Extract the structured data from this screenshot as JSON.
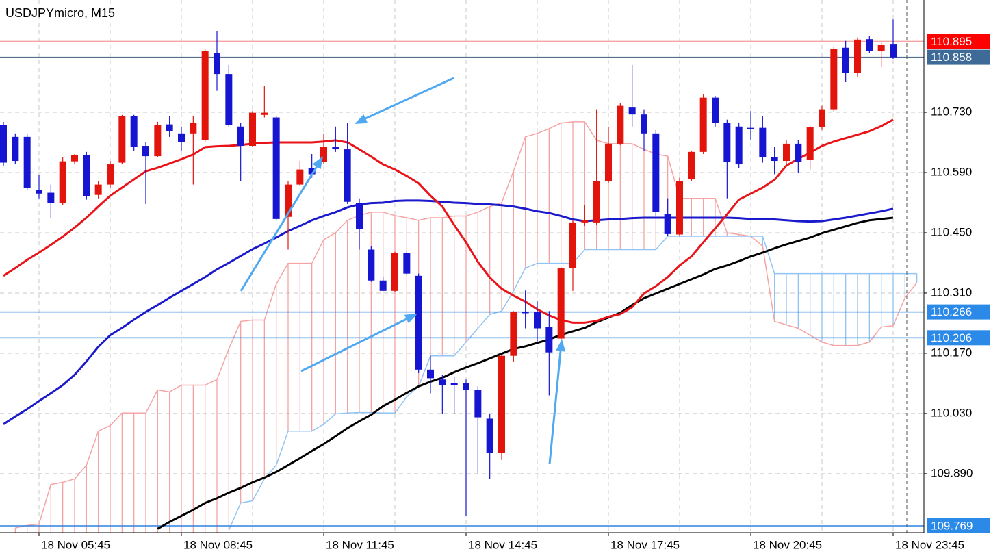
{
  "chart_data": {
    "type": "candlestick",
    "title": "USDJPYmicro, M15",
    "categories": [
      null,
      null,
      null,
      "18 Nov 05:45",
      null,
      null,
      null,
      null,
      null,
      null,
      null,
      null,
      null,
      null,
      null,
      "18 Nov 08:45",
      null,
      null,
      null,
      null,
      null,
      null,
      null,
      null,
      null,
      null,
      null,
      "18 Nov 11:45",
      null,
      null,
      null,
      null,
      null,
      null,
      null,
      null,
      null,
      null,
      null,
      "18 Nov 14:45",
      null,
      null,
      null,
      null,
      null,
      null,
      null,
      null,
      null,
      null,
      null,
      "18 Nov 17:45",
      null,
      null,
      null,
      null,
      null,
      null,
      null,
      null,
      null,
      null,
      null,
      "18 Nov 20:45",
      null,
      null,
      null,
      null,
      null,
      null,
      null,
      null,
      null,
      null,
      null,
      "18 Nov 23:45",
      null,
      null
    ],
    "open": [
      110.7,
      110.673,
      110.673,
      110.549,
      110.543,
      110.519,
      110.616,
      110.63,
      110.538,
      110.562,
      110.613,
      110.721,
      110.652,
      110.628,
      110.702,
      110.681,
      110.681,
      110.665,
      110.867,
      110.819,
      110.697,
      110.652,
      110.724,
      110.718,
      110.487,
      110.562,
      110.601,
      110.614,
      110.649,
      110.644,
      110.519,
      110.411,
      110.339,
      110.315,
      110.403,
      110.35,
      110.132,
      110.109,
      110.101,
      110.101,
      110.085,
      110.018,
      109.938,
      110.164,
      110.266,
      110.266,
      110.231,
      110.204,
      110.368,
      110.474,
      110.474,
      110.57,
      110.657,
      110.741,
      110.725,
      110.681,
      110.493,
      110.446,
      110.574,
      110.638,
      110.764,
      110.705,
      110.697,
      110.694,
      110.694,
      110.625,
      110.617,
      110.657,
      110.62,
      110.695,
      110.737,
      110.88,
      110.822,
      110.9,
      110.872,
      110.889,
      null,
      null
    ],
    "high": [
      110.708,
      110.681,
      110.681,
      110.585,
      110.562,
      110.625,
      110.633,
      110.638,
      110.57,
      110.617,
      110.724,
      110.724,
      110.66,
      110.708,
      110.721,
      110.697,
      110.721,
      110.876,
      110.919,
      110.84,
      110.705,
      110.733,
      110.792,
      110.721,
      110.57,
      110.617,
      110.633,
      110.681,
      110.697,
      110.705,
      110.53,
      110.419,
      110.347,
      110.406,
      110.406,
      110.355,
      110.164,
      110.119,
      110.116,
      110.109,
      110.093,
      110.029,
      110.167,
      110.268,
      110.316,
      110.291,
      110.268,
      110.371,
      110.479,
      110.514,
      110.737,
      110.697,
      110.752,
      110.84,
      110.737,
      110.689,
      110.53,
      110.578,
      110.641,
      110.772,
      110.768,
      110.713,
      110.705,
      110.733,
      110.721,
      110.649,
      110.665,
      110.665,
      110.698,
      110.745,
      110.883,
      110.896,
      110.904,
      110.908,
      110.892,
      110.946,
      null,
      null
    ],
    "low": [
      110.605,
      110.609,
      110.549,
      110.53,
      110.485,
      110.514,
      110.609,
      110.527,
      110.53,
      110.554,
      110.609,
      110.641,
      110.517,
      110.625,
      110.673,
      110.641,
      110.562,
      110.66,
      110.78,
      110.697,
      110.57,
      110.649,
      110.718,
      110.479,
      110.411,
      110.558,
      110.578,
      110.609,
      110.638,
      110.517,
      110.411,
      110.336,
      110.315,
      110.312,
      110.352,
      110.124,
      110.077,
      110.029,
      110.029,
      109.791,
      109.891,
      109.878,
      109.922,
      110.151,
      110.228,
      110.196,
      110.072,
      110.201,
      110.315,
      110.466,
      110.469,
      110.565,
      110.654,
      110.697,
      110.641,
      110.49,
      110.442,
      110.442,
      110.57,
      110.633,
      110.697,
      110.53,
      110.601,
      110.665,
      110.613,
      110.586,
      110.609,
      110.59,
      110.597,
      110.689,
      110.732,
      110.8,
      110.813,
      110.867,
      110.835,
      110.854,
      null,
      null
    ],
    "close": [
      110.613,
      110.617,
      110.554,
      110.541,
      110.519,
      110.616,
      110.63,
      110.535,
      110.562,
      110.609,
      110.721,
      110.649,
      110.628,
      110.7,
      110.686,
      110.66,
      110.705,
      110.872,
      110.819,
      110.7,
      110.652,
      110.729,
      110.729,
      110.482,
      110.562,
      110.597,
      110.586,
      110.65,
      110.644,
      110.522,
      110.458,
      110.339,
      110.315,
      110.403,
      110.355,
      110.132,
      110.112,
      110.096,
      110.096,
      110.085,
      110.021,
      109.938,
      110.164,
      110.266,
      110.263,
      110.228,
      110.172,
      110.368,
      110.474,
      110.479,
      110.57,
      110.657,
      110.745,
      110.725,
      110.681,
      110.498,
      110.447,
      110.57,
      110.638,
      110.764,
      110.705,
      110.614,
      110.609,
      110.692,
      110.625,
      110.617,
      110.657,
      110.614,
      110.695,
      110.737,
      110.877,
      110.821,
      110.899,
      110.872,
      110.886,
      110.858,
      null,
      null
    ],
    "up_color": "#e3140c",
    "down_color": "#1616d2",
    "ylim": [
      109.753,
      110.991
    ],
    "yticks": [
      {
        "value": 109.89,
        "label": "109.890"
      },
      {
        "value": 110.03,
        "label": "110.030"
      },
      {
        "value": 110.17,
        "label": "110.170"
      },
      {
        "value": 110.31,
        "label": "110.310"
      },
      {
        "value": 110.45,
        "label": "110.450"
      },
      {
        "value": 110.59,
        "label": "110.590"
      },
      {
        "value": 110.73,
        "label": "110.730"
      }
    ],
    "grid": true,
    "cloud": {
      "span_a": {
        "color": "#f5a3a3",
        "values": [
          null,
          109.764,
          109.77,
          109.773,
          109.865,
          109.87,
          109.878,
          109.91,
          109.989,
          110.002,
          110.031,
          110.031,
          110.031,
          110.085,
          110.08,
          110.096,
          110.096,
          110.096,
          110.109,
          110.18,
          110.244,
          110.247,
          110.247,
          110.331,
          110.379,
          110.379,
          110.379,
          110.434,
          110.45,
          110.479,
          110.49,
          110.498,
          110.498,
          110.49,
          110.485,
          110.479,
          110.485,
          110.485,
          110.489,
          110.489,
          110.498,
          110.511,
          110.52,
          110.593,
          110.673,
          110.681,
          110.692,
          110.705,
          110.708,
          110.708,
          110.665,
          110.657,
          110.657,
          110.657,
          110.644,
          110.633,
          110.628,
          110.53,
          110.53,
          110.53,
          110.53,
          110.45,
          110.446,
          110.442,
          110.419,
          110.244,
          110.236,
          110.228,
          110.212,
          110.196,
          110.188,
          110.188,
          110.188,
          110.196,
          110.231,
          110.234,
          110.299,
          110.334
        ]
      },
      "span_b": {
        "color": "#8fc4f4",
        "values": [
          null,
          null,
          null,
          null,
          null,
          null,
          null,
          null,
          null,
          null,
          null,
          null,
          null,
          null,
          null,
          null,
          null,
          null,
          null,
          109.759,
          109.822,
          109.827,
          109.878,
          109.91,
          109.989,
          109.989,
          109.989,
          110.005,
          110.029,
          110.031,
          110.032,
          110.032,
          110.031,
          110.031,
          110.069,
          110.093,
          110.164,
          110.164,
          110.164,
          110.196,
          110.228,
          110.26,
          110.268,
          110.315,
          110.368,
          110.379,
          110.379,
          110.379,
          110.379,
          110.411,
          110.411,
          110.411,
          110.411,
          110.411,
          110.411,
          110.411,
          110.442,
          110.442,
          110.442,
          110.442,
          110.442,
          110.442,
          110.442,
          110.442,
          110.442,
          110.355,
          110.355,
          110.355,
          110.355,
          110.355,
          110.355,
          110.355,
          110.355,
          110.355,
          110.355,
          110.355,
          110.355,
          110.355
        ]
      }
    },
    "indicators": [
      {
        "color": "#1a1acc",
        "values": [
          110.005,
          110.023,
          110.04,
          110.059,
          110.077,
          110.096,
          110.12,
          110.151,
          110.185,
          110.212,
          110.229,
          110.248,
          110.266,
          110.282,
          110.299,
          110.315,
          110.331,
          110.347,
          110.365,
          110.38,
          110.396,
          110.412,
          110.425,
          110.439,
          110.454,
          110.466,
          110.479,
          110.489,
          110.498,
          110.509,
          110.516,
          110.519,
          110.52,
          110.524,
          110.525,
          110.525,
          110.524,
          110.522,
          110.52,
          110.519,
          110.517,
          110.516,
          110.514,
          110.511,
          110.506,
          110.5,
          110.496,
          110.489,
          110.481,
          110.477,
          110.479,
          110.481,
          110.482,
          110.484,
          110.485,
          110.485,
          110.485,
          110.485,
          110.485,
          110.485,
          110.485,
          110.485,
          110.484,
          110.482,
          110.481,
          110.481,
          110.479,
          110.477,
          110.476,
          110.477,
          110.481,
          110.485,
          110.49,
          110.495,
          110.5,
          110.506,
          null,
          null
        ]
      },
      {
        "color": "#000000",
        "values": [
          null,
          null,
          null,
          null,
          null,
          null,
          null,
          null,
          null,
          null,
          null,
          null,
          null,
          109.762,
          109.778,
          109.792,
          109.806,
          109.822,
          109.833,
          109.846,
          109.857,
          109.87,
          109.881,
          109.894,
          109.91,
          109.926,
          109.943,
          109.959,
          109.977,
          109.996,
          110.012,
          110.027,
          110.047,
          110.062,
          110.078,
          110.093,
          110.104,
          110.113,
          110.126,
          110.137,
          110.147,
          110.158,
          110.169,
          110.18,
          110.186,
          110.194,
          110.202,
          110.213,
          110.221,
          110.229,
          110.242,
          110.253,
          110.264,
          110.282,
          110.298,
          110.309,
          110.32,
          110.331,
          110.342,
          110.353,
          110.366,
          110.374,
          110.384,
          110.395,
          110.404,
          110.414,
          110.423,
          110.431,
          110.439,
          110.449,
          110.457,
          110.465,
          110.473,
          110.479,
          110.482,
          110.485,
          null,
          null
        ]
      },
      {
        "color": "#e8141a",
        "values": [
          110.35,
          110.368,
          110.387,
          110.404,
          110.422,
          110.441,
          110.462,
          110.485,
          110.511,
          110.536,
          110.555,
          110.574,
          110.593,
          110.601,
          110.611,
          110.621,
          110.632,
          110.649,
          110.651,
          110.652,
          110.654,
          110.657,
          110.659,
          110.66,
          110.66,
          110.66,
          110.66,
          110.662,
          110.665,
          110.66,
          110.644,
          110.627,
          110.609,
          110.597,
          110.582,
          110.565,
          110.536,
          110.511,
          110.468,
          110.428,
          110.382,
          110.346,
          110.32,
          110.304,
          110.29,
          110.272,
          110.258,
          110.247,
          110.241,
          110.241,
          110.245,
          110.255,
          110.261,
          110.277,
          110.309,
          110.326,
          110.347,
          110.374,
          110.395,
          110.428,
          110.46,
          110.493,
          110.527,
          110.541,
          110.555,
          110.573,
          110.606,
          110.622,
          110.636,
          110.652,
          110.662,
          110.67,
          110.678,
          110.686,
          110.698,
          110.713,
          null,
          null
        ]
      }
    ],
    "levels": [
      {
        "value": 110.895,
        "color": "#f5a3a3",
        "box_color": "#ff0000"
      },
      {
        "value": 110.858,
        "color": "#56718f",
        "box_color": "#3d6a96"
      },
      {
        "value": 110.266,
        "color": "#2b82e2",
        "box_color": "#2b8ae8"
      },
      {
        "value": 110.206,
        "color": "#2b82e2",
        "box_color": "#2b8ae8"
      },
      {
        "value": 109.769,
        "color": "#2b82e2",
        "box_color": "#2b8ae8"
      }
    ]
  }
}
